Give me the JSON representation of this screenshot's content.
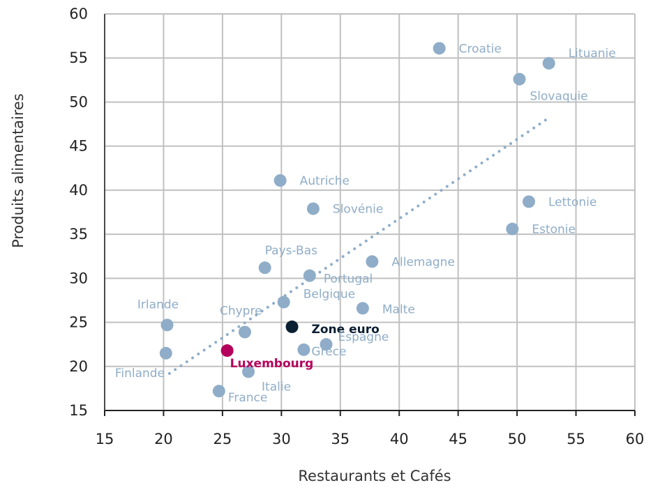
{
  "chart_data": {
    "type": "scatter",
    "xlabel": "Restaurants et Cafés",
    "ylabel": "Produits alimentaires",
    "xlim": [
      15,
      60
    ],
    "ylim": [
      15,
      60
    ],
    "xticks": [
      15,
      20,
      25,
      30,
      35,
      40,
      45,
      50,
      55,
      60
    ],
    "yticks": [
      15,
      20,
      25,
      30,
      35,
      40,
      45,
      50,
      55,
      60
    ],
    "grid": true,
    "colors": {
      "default": "#8fadc8",
      "zone_euro": "#0b1f33",
      "luxembourg": "#b5005b",
      "grid": "#c0c0c0"
    },
    "trendline": {
      "style": "dotted",
      "x": [
        20.5,
        52.8
      ],
      "y": [
        19.2,
        48.3
      ]
    },
    "points": [
      {
        "label": "Croatie",
        "x": 43.4,
        "y": 56.1
      },
      {
        "label": "Lituanie",
        "x": 52.7,
        "y": 54.4
      },
      {
        "label": "Slovaquie",
        "x": 50.2,
        "y": 52.6
      },
      {
        "label": "Autriche",
        "x": 29.9,
        "y": 41.1
      },
      {
        "label": "Lettonie",
        "x": 51.0,
        "y": 38.7
      },
      {
        "label": "Slovénie",
        "x": 32.7,
        "y": 37.9
      },
      {
        "label": "Estonie",
        "x": 49.6,
        "y": 35.6
      },
      {
        "label": "Allemagne",
        "x": 37.7,
        "y": 31.9
      },
      {
        "label": "Pays-Bas",
        "x": 28.6,
        "y": 31.2
      },
      {
        "label": "Portugal",
        "x": 32.4,
        "y": 30.3
      },
      {
        "label": "Belgique",
        "x": 30.2,
        "y": 27.3
      },
      {
        "label": "Malte",
        "x": 36.9,
        "y": 26.6
      },
      {
        "label": "Irlande",
        "x": 20.3,
        "y": 24.7
      },
      {
        "label": "Chypre",
        "x": 26.9,
        "y": 23.9
      },
      {
        "label": "Zone euro",
        "x": 30.9,
        "y": 24.5,
        "highlight": "zone_euro"
      },
      {
        "label": "Espagne",
        "x": 33.8,
        "y": 22.5
      },
      {
        "label": "Grèce",
        "x": 31.9,
        "y": 21.9
      },
      {
        "label": "Luxembourg",
        "x": 25.4,
        "y": 21.8,
        "highlight": "luxembourg"
      },
      {
        "label": "Finlande",
        "x": 20.2,
        "y": 21.5
      },
      {
        "label": "Italie",
        "x": 27.2,
        "y": 19.4
      },
      {
        "label": "France",
        "x": 24.7,
        "y": 17.2
      }
    ]
  }
}
